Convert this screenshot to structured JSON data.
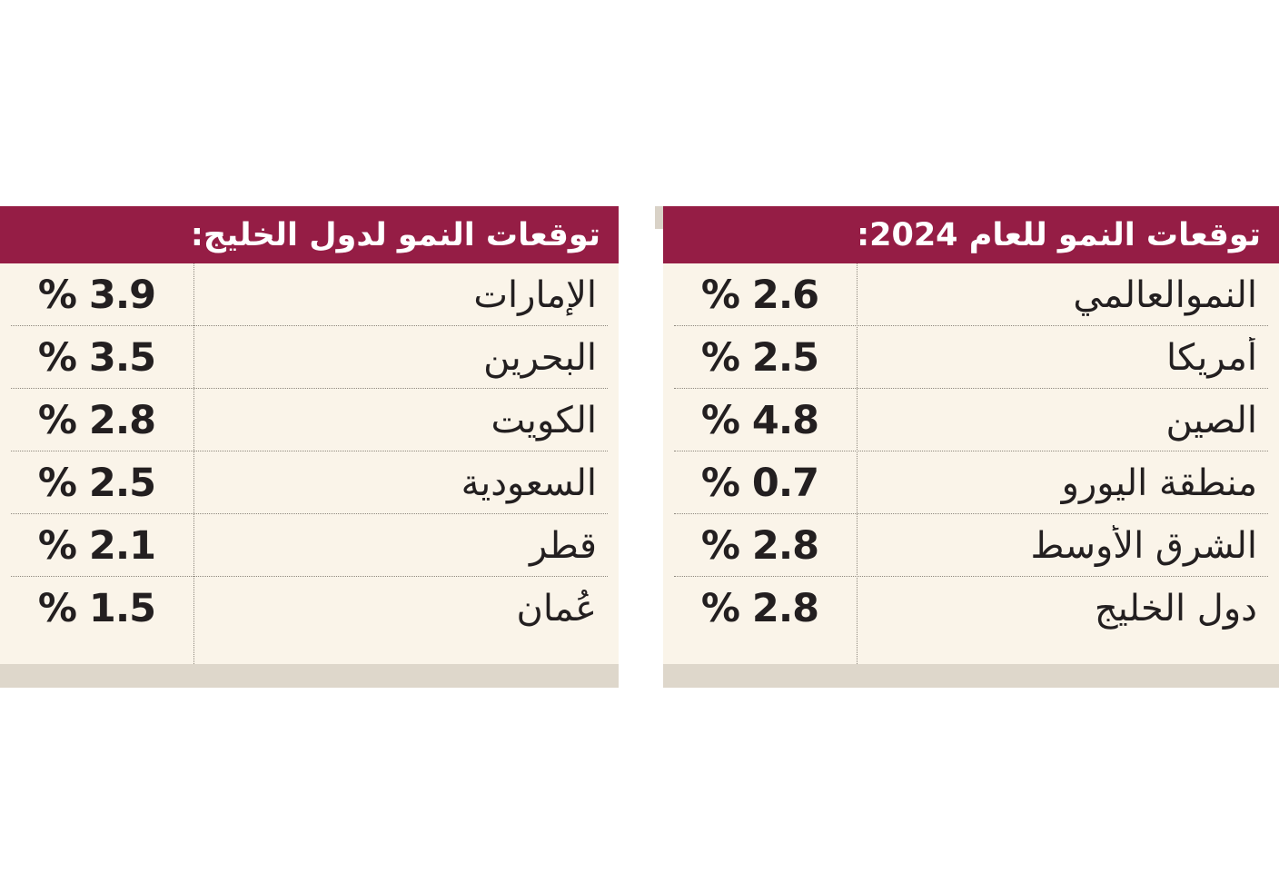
{
  "tables": {
    "forecast_2024": {
      "title": "توقعات النمو للعام 2024:",
      "rows": [
        {
          "label": "النموالعالمي",
          "value": "% 2.6"
        },
        {
          "label": "أمريكا",
          "value": "% 2.5"
        },
        {
          "label": "الصين",
          "value": "% 4.8"
        },
        {
          "label": "منطقة اليورو",
          "value": "% 0.7"
        },
        {
          "label": "الشرق الأوسط",
          "value": "% 2.8"
        },
        {
          "label": "دول الخليج",
          "value": "% 2.8"
        }
      ]
    },
    "gulf_forecast": {
      "title": "توقعات النمو لدول الخليج:",
      "rows": [
        {
          "label": "الإمارات",
          "value": "% 3.9"
        },
        {
          "label": "البحرين",
          "value": "% 3.5"
        },
        {
          "label": "الكويت",
          "value": "% 2.8"
        },
        {
          "label": "السعودية",
          "value": "% 2.5"
        },
        {
          "label": "قطر",
          "value": "% 2.1"
        },
        {
          "label": "عُمان",
          "value": "% 1.5"
        }
      ]
    }
  },
  "colors": {
    "header_bg": "#951d45",
    "header_text": "#ffffff",
    "body_bg": "#faf4e9",
    "footer_bg": "#ded7cb",
    "separator": "#8f897f",
    "text": "#231f20"
  },
  "chart_data": [
    {
      "type": "table",
      "title": "توقعات النمو للعام 2024:",
      "categories": [
        "النموالعالمي",
        "أمريكا",
        "الصين",
        "منطقة اليورو",
        "الشرق الأوسط",
        "دول الخليج"
      ],
      "values": [
        2.6,
        2.5,
        4.8,
        0.7,
        2.8,
        2.8
      ],
      "unit": "%",
      "layout": "rtl two-column table, labels right, centered percent values left"
    },
    {
      "type": "table",
      "title": "توقعات النمو لدول الخليج:",
      "categories": [
        "الإمارات",
        "البحرين",
        "الكويت",
        "السعودية",
        "قطر",
        "عُمان"
      ],
      "values": [
        3.9,
        3.5,
        2.8,
        2.5,
        2.1,
        1.5
      ],
      "unit": "%",
      "layout": "rtl two-column table, labels right, centered percent values left"
    }
  ]
}
